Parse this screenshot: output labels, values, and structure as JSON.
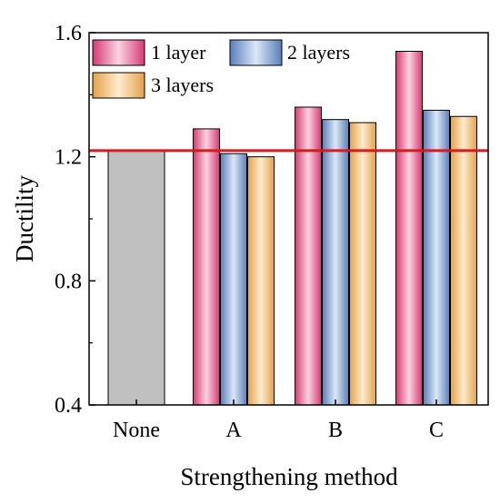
{
  "chart_data": {
    "type": "bar",
    "xlabel": "Strengthening method",
    "ylabel": "Ductility",
    "ylim": [
      0.4,
      1.6
    ],
    "yticks": [
      0.4,
      0.8,
      1.2,
      1.6
    ],
    "categories": [
      "None",
      "A",
      "B",
      "C"
    ],
    "baseline": {
      "category": "None",
      "value": 1.22,
      "color": "#c0c0c0"
    },
    "series": [
      {
        "name": "1 layer",
        "values": [
          null,
          1.29,
          1.36,
          1.54
        ],
        "color": "#e8558a"
      },
      {
        "name": "2 layers",
        "values": [
          null,
          1.21,
          1.32,
          1.35
        ],
        "color": "#6f93c9"
      },
      {
        "name": "3 layers",
        "values": [
          null,
          1.2,
          1.31,
          1.33
        ],
        "color": "#e9b15e"
      }
    ],
    "reference_line": {
      "value": 1.22,
      "color": "#cc1f1f"
    },
    "legend_placement": "top-left",
    "grid": false
  }
}
